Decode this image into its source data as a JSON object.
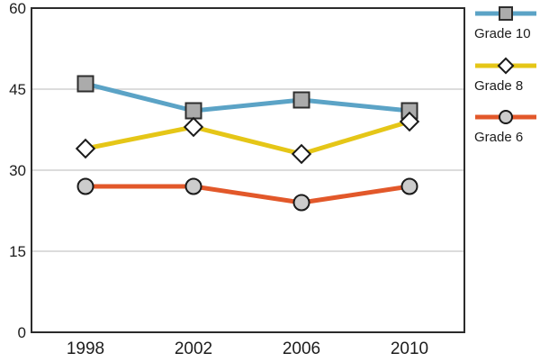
{
  "chart_data": {
    "type": "line",
    "x_labels": [
      "1998",
      "2002",
      "2006",
      "2010"
    ],
    "y_ticks": [
      0,
      15,
      30,
      45,
      60
    ],
    "ylim": [
      0,
      60
    ],
    "grid": true,
    "legend_position": "right",
    "series": [
      {
        "name": "Grade 10",
        "values": [
          46,
          41,
          43,
          41
        ],
        "color": "#5BA3C6",
        "marker": "square",
        "marker_fill": "#ABABAB",
        "marker_stroke": "#2E2E2E"
      },
      {
        "name": "Grade 8",
        "values": [
          34,
          38,
          33,
          39
        ],
        "color": "#E5C617",
        "marker": "diamond",
        "marker_fill": "#FFFFFF",
        "marker_stroke": "#1A1A1A"
      },
      {
        "name": "Grade 6",
        "values": [
          27,
          27,
          24,
          27
        ],
        "color": "#E2582A",
        "marker": "circle",
        "marker_fill": "#CCCCCC",
        "marker_stroke": "#1A1A1A"
      }
    ],
    "colors": {
      "gridline": "#C8C8C8",
      "axis_box": "#2B2B2B",
      "tick_text": "#1C1C1C",
      "background": "#FFFFFF"
    }
  }
}
